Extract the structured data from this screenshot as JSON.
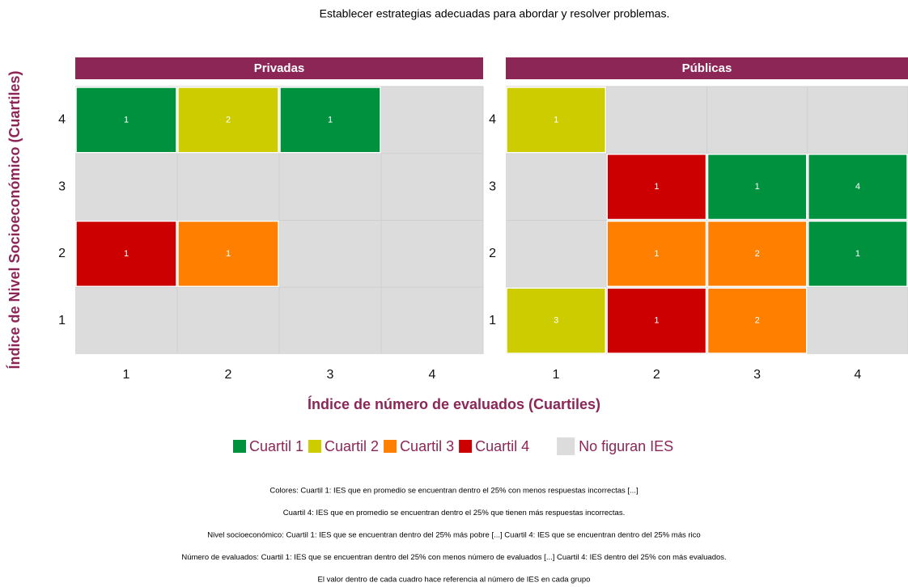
{
  "chart_data": {
    "type": "heatmap",
    "title": "Establecer estrategias adecuadas para abordar y resolver problemas.",
    "xlabel": "Índice de número de evaluados (Cuartiles)",
    "ylabel": "Índice de Nivel Socioeconómico (Cuartiles)",
    "xlim": [
      0.5,
      4.5
    ],
    "ylim": [
      0.5,
      4.5
    ],
    "xticks": [
      1,
      2,
      3,
      4
    ],
    "yticks": [
      1,
      2,
      3,
      4
    ],
    "legend": [
      {
        "name": "Cuartil 1",
        "color": "#00913f"
      },
      {
        "name": "Cuartil 2",
        "color": "#cccc00"
      },
      {
        "name": "Cuartil 3",
        "color": "#ff8000"
      },
      {
        "name": "Cuartil 4",
        "color": "#cc0000"
      }
    ],
    "empty": {
      "name": "No figuran IES",
      "color": "#dcdcdc"
    },
    "panels": [
      {
        "name": "Privadas",
        "cells": [
          {
            "x": 1,
            "y": 4,
            "category": "Cuartil 1",
            "value": 1
          },
          {
            "x": 2,
            "y": 4,
            "category": "Cuartil 2",
            "value": 2
          },
          {
            "x": 3,
            "y": 4,
            "category": "Cuartil 1",
            "value": 1
          },
          {
            "x": 1,
            "y": 2,
            "category": "Cuartil 4",
            "value": 1
          },
          {
            "x": 2,
            "y": 2,
            "category": "Cuartil 3",
            "value": 1
          }
        ]
      },
      {
        "name": "Públicas",
        "cells": [
          {
            "x": 1,
            "y": 4,
            "category": "Cuartil 2",
            "value": 1
          },
          {
            "x": 2,
            "y": 3,
            "category": "Cuartil 4",
            "value": 1
          },
          {
            "x": 3,
            "y": 3,
            "category": "Cuartil 1",
            "value": 1
          },
          {
            "x": 4,
            "y": 3,
            "category": "Cuartil 1",
            "value": 4
          },
          {
            "x": 2,
            "y": 2,
            "category": "Cuartil 3",
            "value": 1
          },
          {
            "x": 3,
            "y": 2,
            "category": "Cuartil 3",
            "value": 2
          },
          {
            "x": 4,
            "y": 2,
            "category": "Cuartil 1",
            "value": 1
          },
          {
            "x": 1,
            "y": 1,
            "category": "Cuartil 2",
            "value": 3
          },
          {
            "x": 2,
            "y": 1,
            "category": "Cuartil 4",
            "value": 1
          },
          {
            "x": 3,
            "y": 1,
            "category": "Cuartil 3",
            "value": 2
          }
        ]
      }
    ],
    "notes": [
      "Colores: Cuartil 1:  IES que en promedio se encuentran dentro el 25% con menos respuestas incorrectas [...]",
      "Cuartil 4: IES que en promedio se encuentran dentro el 25% que tienen más respuestas incorrectas.",
      "Nivel socioeconómico: Cuartil 1: IES que se encuentran dentro del 25% más pobre [...] Cuartil 4: IES que se encuentran dentro del 25% más rico",
      "Número de evaluados: Cuartil 1: IES que se encuentran dentro del 25% con menos número de evaluados [...] Cuartil 4: IES dentro del 25% con más evaluados.",
      "El valor dentro de cada cuadro hace referencia al número de IES en cada grupo"
    ]
  }
}
